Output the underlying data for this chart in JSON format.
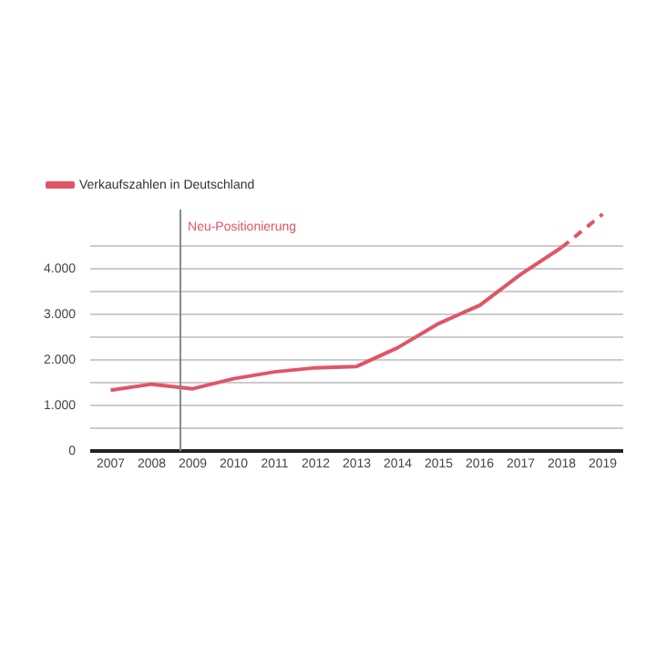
{
  "chart_data": {
    "type": "line",
    "x": [
      2007,
      2008,
      2009,
      2010,
      2011,
      2012,
      2013,
      2014,
      2015,
      2016,
      2017,
      2018,
      2019
    ],
    "series": [
      {
        "name": "Verkaufszahlen in Deutschland",
        "color": "#e05566",
        "line_style": "solid",
        "values": [
          1340,
          1470,
          1370,
          1590,
          1740,
          1830,
          1860,
          2270,
          2800,
          3200,
          3880,
          4470,
          null
        ]
      },
      {
        "color": "#e05566",
        "line_style": "dashed",
        "values": [
          null,
          null,
          null,
          null,
          null,
          null,
          null,
          null,
          null,
          null,
          null,
          4470,
          5200
        ]
      }
    ],
    "xlim": [
      2006.5,
      2019.5
    ],
    "xticks": [
      2007,
      2008,
      2009,
      2010,
      2011,
      2012,
      2013,
      2014,
      2015,
      2016,
      2017,
      2018,
      2019
    ],
    "ylim": [
      0,
      5300
    ],
    "yticks": [
      {
        "value": 0,
        "label": "0"
      },
      {
        "value": 500,
        "label": null
      },
      {
        "value": 1000,
        "label": "1.000"
      },
      {
        "value": 1500,
        "label": null
      },
      {
        "value": 2000,
        "label": "2.000"
      },
      {
        "value": 2500,
        "label": null
      },
      {
        "value": 3000,
        "label": "3.000"
      },
      {
        "value": 3500,
        "label": null
      },
      {
        "value": 4000,
        "label": "4.000"
      },
      {
        "value": 4500,
        "label": null
      }
    ],
    "ref_lines": [
      {
        "axis": "x",
        "value": 2008.7,
        "label": "Neu-Positionierung",
        "color": "#888888"
      }
    ],
    "grid": "y",
    "legend": "top left",
    "marker": "none"
  }
}
